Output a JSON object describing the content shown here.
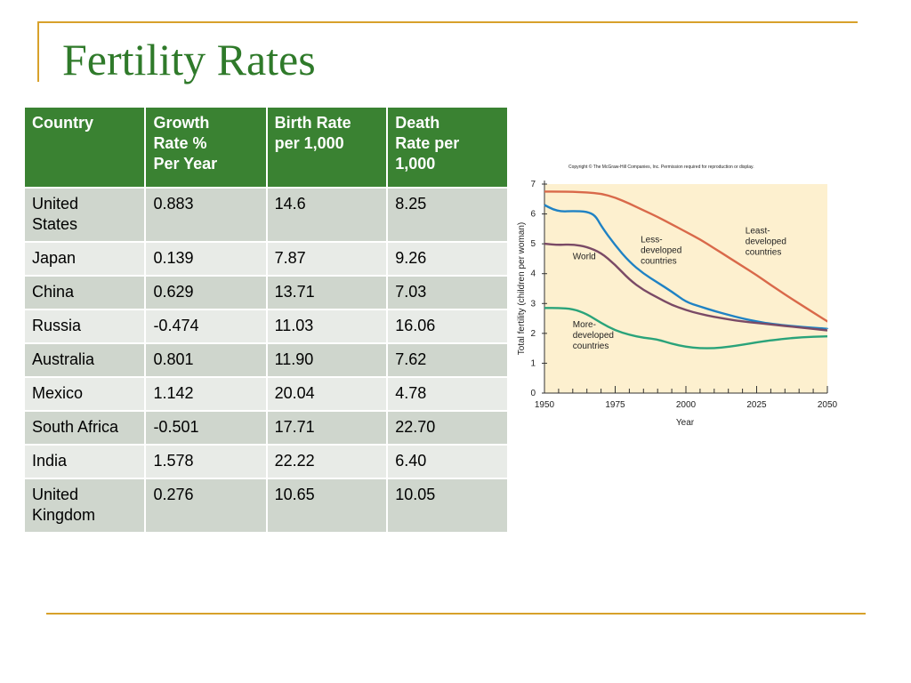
{
  "slide": {
    "title": "Fertility Rates"
  },
  "table": {
    "headers": [
      [
        "Country"
      ],
      [
        "Growth",
        "Rate %",
        "Per Year"
      ],
      [
        "Birth Rate",
        "per 1,000"
      ],
      [
        "Death",
        "Rate per",
        "1,000"
      ]
    ],
    "rows": [
      [
        [
          "United",
          "States"
        ],
        [
          "0.883"
        ],
        [
          "14.6"
        ],
        [
          "8.25"
        ]
      ],
      [
        [
          "Japan"
        ],
        [
          "0.139"
        ],
        [
          "7.87"
        ],
        [
          "9.26"
        ]
      ],
      [
        [
          "China"
        ],
        [
          "0.629"
        ],
        [
          "13.71"
        ],
        [
          "7.03"
        ]
      ],
      [
        [
          "Russia"
        ],
        [
          "-0.474"
        ],
        [
          "11.03"
        ],
        [
          "16.06"
        ]
      ],
      [
        [
          "Australia"
        ],
        [
          "0.801"
        ],
        [
          "11.90"
        ],
        [
          "7.62"
        ]
      ],
      [
        [
          "Mexico"
        ],
        [
          "1.142"
        ],
        [
          "20.04"
        ],
        [
          "4.78"
        ]
      ],
      [
        [
          "South Africa"
        ],
        [
          "-0.501"
        ],
        [
          "17.71"
        ],
        [
          "22.70"
        ]
      ],
      [
        [
          "India"
        ],
        [
          "1.578"
        ],
        [
          "22.22"
        ],
        [
          "6.40"
        ]
      ],
      [
        [
          "United",
          "Kingdom"
        ],
        [
          "0.276"
        ],
        [
          "10.65"
        ],
        [
          "10.05"
        ]
      ]
    ]
  },
  "chart_data": {
    "type": "line",
    "title": "Copyright © The McGraw-Hill Companies, Inc. Permission required for reproduction or display.",
    "xlabel": "Year",
    "ylabel": "Total fertility (children per woman)",
    "xlim": [
      1950,
      2050
    ],
    "ylim": [
      0,
      7
    ],
    "xticks": [
      1950,
      1975,
      2000,
      2025,
      2050
    ],
    "yticks": [
      0,
      1,
      2,
      3,
      4,
      5,
      6,
      7
    ],
    "grid": false,
    "colors": {
      "background": "#fdf0cf",
      "axis": "#333333"
    },
    "series": [
      {
        "name": "Least- developed countries",
        "color": "#d9694a",
        "x": [
          1950,
          1955,
          1960,
          1965,
          1970,
          1975,
          1980,
          1985,
          1990,
          1995,
          2000,
          2005,
          2010,
          2015,
          2020,
          2025,
          2030,
          2035,
          2040,
          2045,
          2050
        ],
        "y": [
          6.75,
          6.75,
          6.74,
          6.72,
          6.68,
          6.55,
          6.35,
          6.12,
          5.9,
          5.65,
          5.4,
          5.15,
          4.85,
          4.55,
          4.25,
          3.95,
          3.62,
          3.3,
          3.0,
          2.7,
          2.4
        ]
      },
      {
        "name": "Less- developed countries",
        "color": "#1f82c4",
        "x": [
          1950,
          1953,
          1956,
          1960,
          1965,
          1968,
          1970,
          1975,
          1980,
          1985,
          1990,
          1995,
          2000,
          2005,
          2010,
          2015,
          2020,
          2025,
          2030,
          2040,
          2050
        ],
        "y": [
          6.3,
          6.15,
          6.08,
          6.1,
          6.08,
          5.95,
          5.6,
          4.95,
          4.4,
          4.0,
          3.7,
          3.4,
          3.05,
          2.9,
          2.75,
          2.62,
          2.5,
          2.4,
          2.32,
          2.22,
          2.15
        ]
      },
      {
        "name": "World",
        "color": "#7a4a66",
        "x": [
          1950,
          1955,
          1960,
          1965,
          1970,
          1975,
          1980,
          1985,
          1990,
          1995,
          2000,
          2005,
          2010,
          2015,
          2020,
          2025,
          2030,
          2040,
          2050
        ],
        "y": [
          5.0,
          4.96,
          4.98,
          4.9,
          4.7,
          4.3,
          3.8,
          3.45,
          3.2,
          2.95,
          2.78,
          2.65,
          2.55,
          2.47,
          2.4,
          2.35,
          2.3,
          2.2,
          2.1
        ]
      },
      {
        "name": "More- developed countries",
        "color": "#2aa37a",
        "x": [
          1950,
          1955,
          1960,
          1965,
          1970,
          1975,
          1980,
          1985,
          1990,
          1995,
          2000,
          2005,
          2010,
          2015,
          2020,
          2025,
          2030,
          2040,
          2050
        ],
        "y": [
          2.85,
          2.85,
          2.82,
          2.65,
          2.35,
          2.1,
          1.95,
          1.85,
          1.8,
          1.65,
          1.55,
          1.5,
          1.5,
          1.55,
          1.62,
          1.7,
          1.77,
          1.87,
          1.9
        ]
      }
    ],
    "annotations": [
      {
        "lines": [
          "Least-",
          "developed",
          "countries"
        ],
        "x": 2021,
        "y": 5.35
      },
      {
        "lines": [
          "Less-",
          "developed",
          "countries"
        ],
        "x": 1984,
        "y": 5.05
      },
      {
        "lines": [
          "World"
        ],
        "x": 1960,
        "y": 4.48
      },
      {
        "lines": [
          "More-",
          "developed",
          "countries"
        ],
        "x": 1960,
        "y": 2.2
      }
    ]
  }
}
